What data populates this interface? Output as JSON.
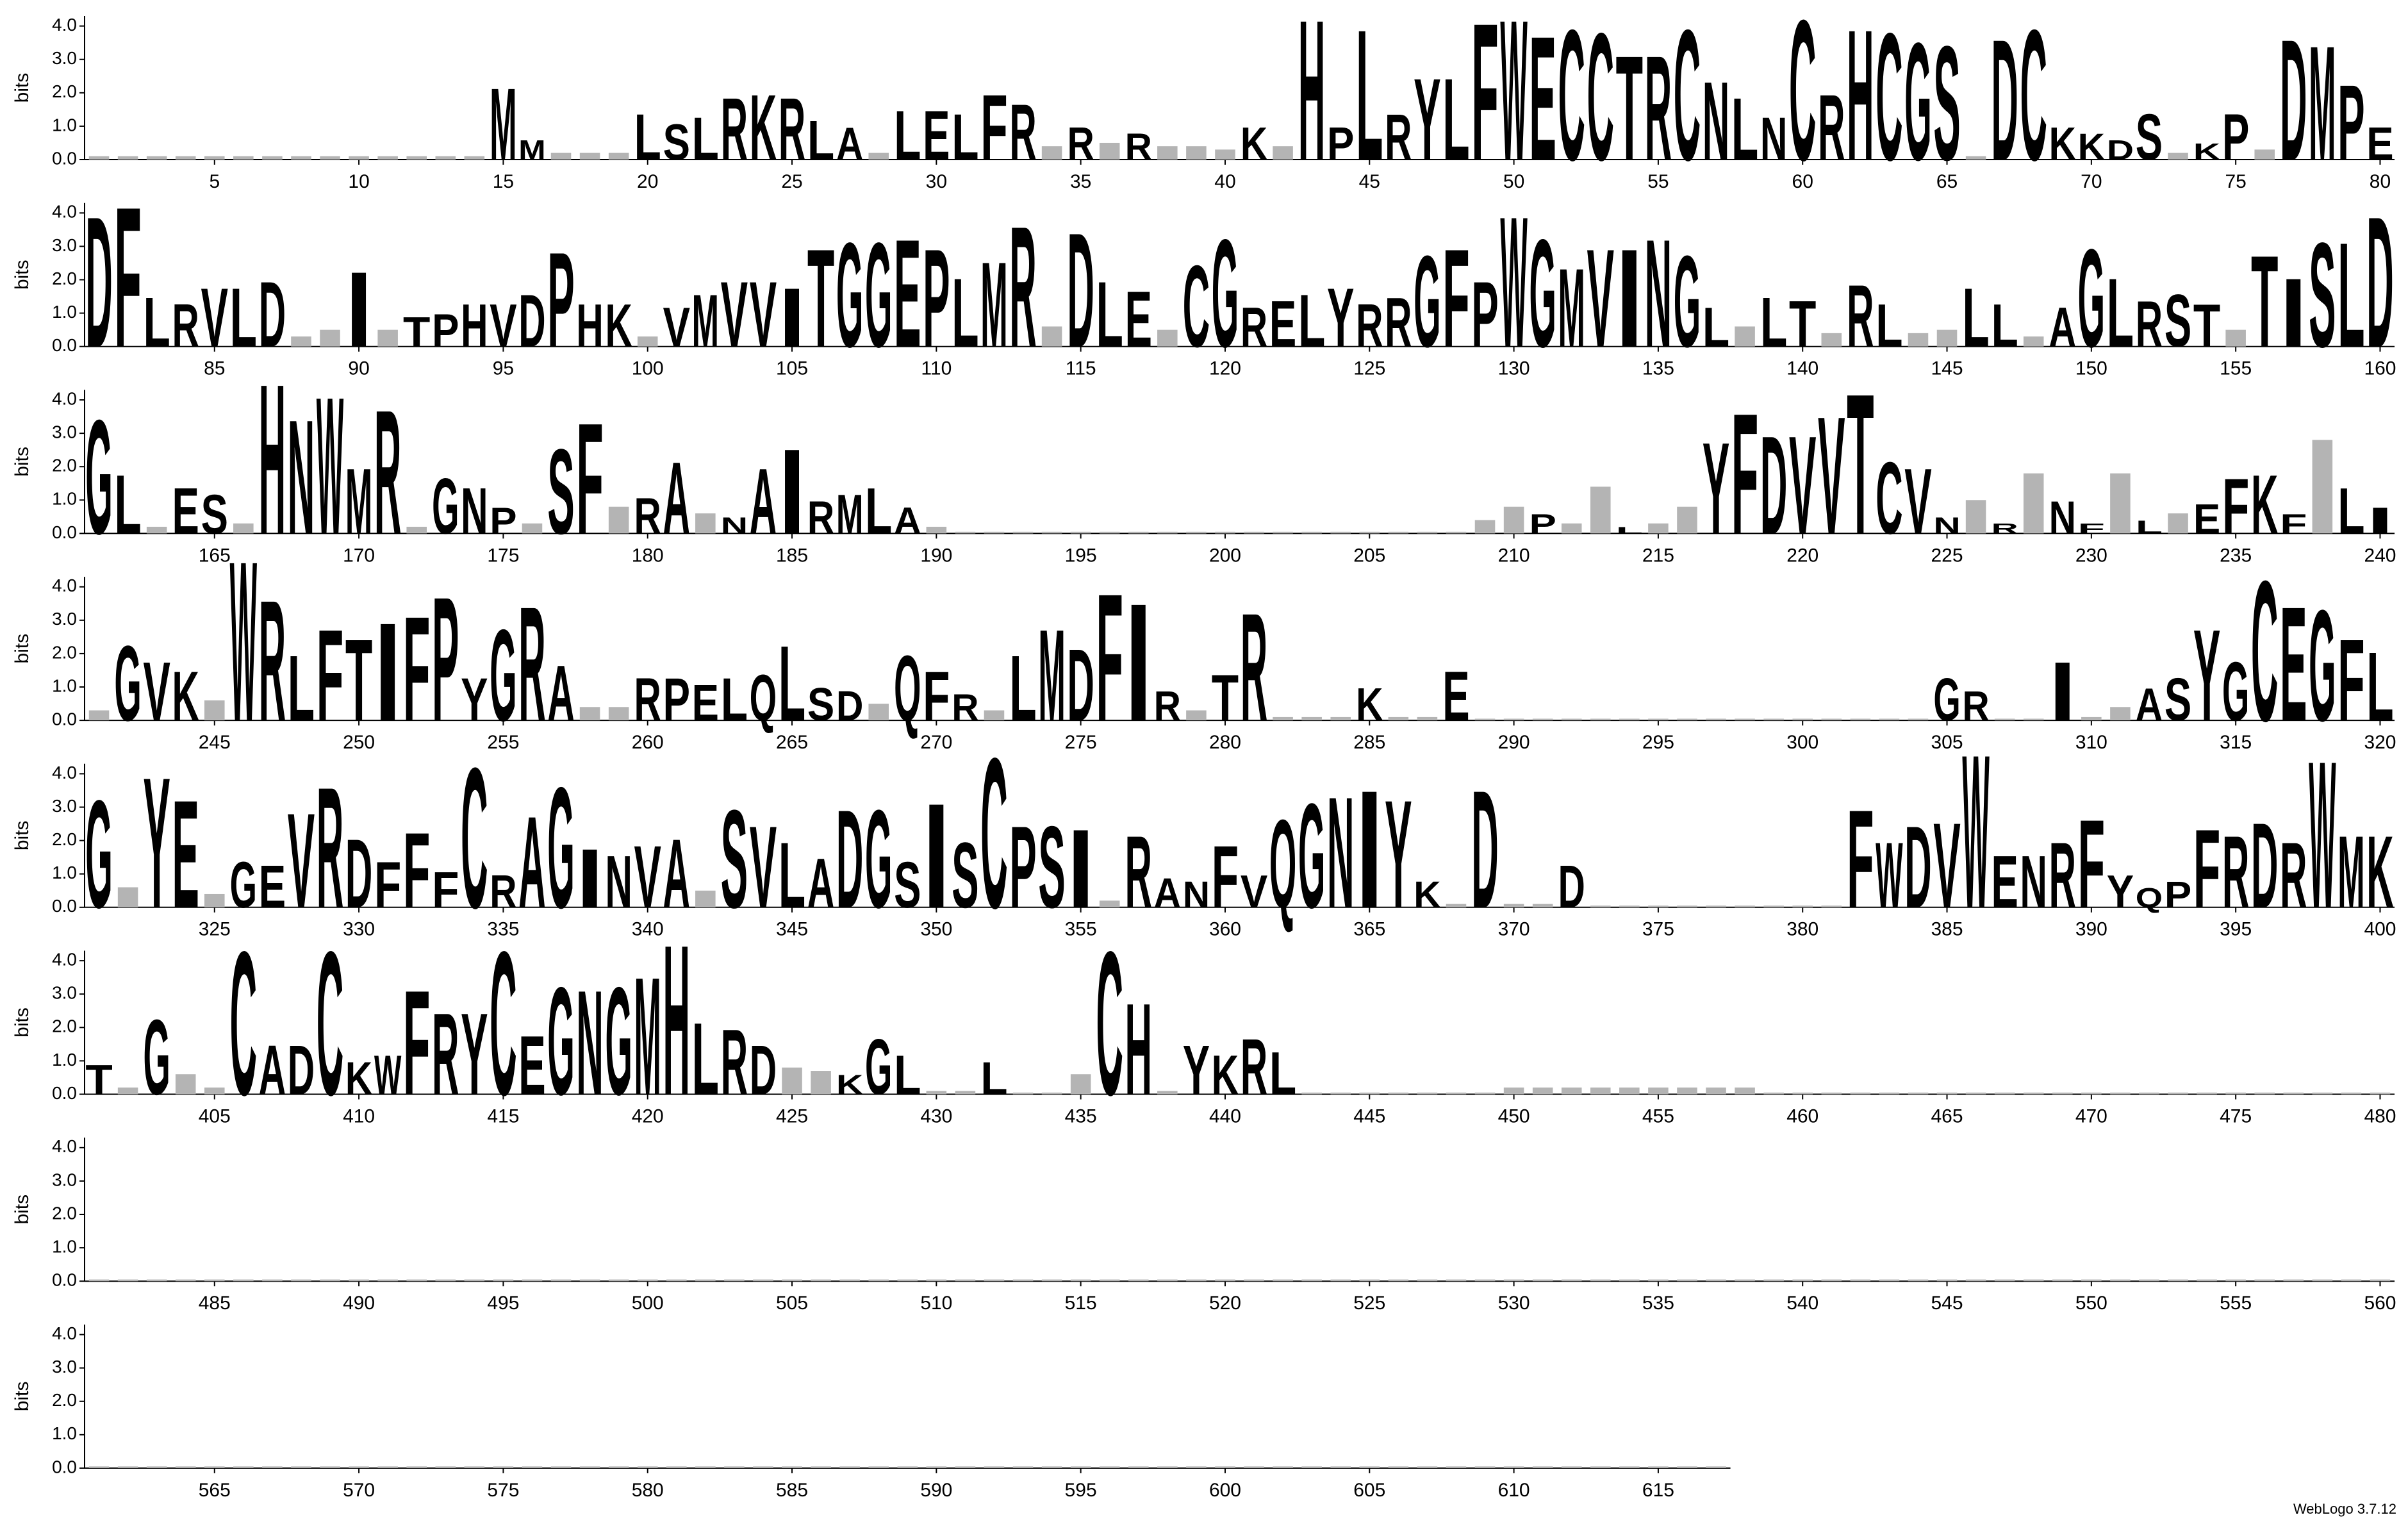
{
  "chart_data": {
    "type": "logo",
    "ylabel": "bits",
    "footer": "WebLogo 3.7.12",
    "ylim": [
      0,
      4.3
    ],
    "yticks": [
      {
        "value": 0,
        "label": "0.0"
      },
      {
        "value": 1,
        "label": "1.0"
      },
      {
        "value": 2,
        "label": "2.0"
      },
      {
        "value": 3,
        "label": "3.0"
      },
      {
        "value": 4,
        "label": "4.0"
      }
    ],
    "color": "#000000",
    "colors": {
      "C": "#ff0000"
    },
    "filler_color": "#b4b4b4",
    "rows": [
      {
        "xlim": [
          0.5,
          80.5
        ],
        "xticks": [
          5,
          10,
          15,
          20,
          25,
          30,
          35,
          40,
          45,
          50,
          55,
          60,
          65,
          70,
          75,
          80
        ],
        "letters": "..............MM...LSLRKRLA.LELFR.R.R...K.HPLRYLFWECCTRCNLNCRHCGS.DCKKDS.KP.DMPE",
        "heights": [
          0.1,
          0.1,
          0.1,
          0.1,
          0.1,
          0.1,
          0.1,
          0.1,
          0.1,
          0.1,
          0.1,
          0.1,
          0.1,
          0.1,
          2.2,
          0.6,
          0.2,
          0.2,
          0.2,
          1.4,
          1.1,
          1.3,
          1.9,
          2.0,
          1.9,
          1.2,
          1.0,
          0.2,
          1.5,
          1.5,
          1.4,
          2.0,
          1.7,
          0.4,
          1.0,
          0.5,
          0.8,
          0.4,
          0.4,
          0.3,
          1.0,
          0.4,
          4.3,
          1.0,
          4.0,
          1.4,
          2.5,
          2.5,
          4.2,
          4.3,
          3.8,
          4.0,
          3.9,
          3.2,
          3.2,
          4.0,
          2.4,
          1.9,
          1.3,
          4.3,
          2.0,
          4.0,
          3.9,
          3.6,
          3.5,
          0.1,
          3.7,
          4.0,
          1.0,
          0.8,
          0.6,
          1.4,
          0.2,
          0.5,
          1.4,
          0.3,
          3.7,
          3.5,
          2.3,
          1.0
        ]
      },
      {
        "xlim": [
          80.5,
          160.5
        ],
        "xticks": [
          85,
          90,
          95,
          100,
          105,
          110,
          115,
          120,
          125,
          130,
          135,
          140,
          145,
          150,
          155,
          160
        ],
        "letters": "DFLRVLD..I.TPHVDPHK.VMVVITGGEPLMR.DLE.CGRELYRRGFPWGMVINGL.LT.RL..LL.AGLRST.TISLD",
        "heights": [
          4.0,
          4.3,
          1.5,
          1.3,
          1.8,
          1.8,
          2.0,
          0.3,
          0.5,
          2.3,
          0.5,
          0.9,
          1.0,
          1.3,
          1.3,
          1.6,
          2.9,
          1.3,
          1.3,
          0.3,
          1.2,
          1.6,
          2.0,
          2.0,
          1.8,
          3.0,
          3.2,
          3.2,
          3.3,
          3.0,
          2.1,
          2.6,
          3.7,
          0.6,
          3.5,
          2.0,
          1.7,
          0.5,
          2.5,
          3.3,
          1.2,
          1.4,
          1.6,
          1.8,
          1.3,
          1.5,
          2.8,
          3.0,
          2.0,
          4.0,
          3.3,
          2.4,
          3.0,
          3.0,
          3.3,
          2.8,
          1.2,
          0.6,
          1.5,
          1.4,
          0.4,
          1.9,
          1.3,
          0.4,
          0.5,
          1.8,
          1.3,
          0.3,
          1.2,
          3.0,
          2.1,
          1.4,
          1.6,
          1.3,
          0.5,
          2.8,
          2.1,
          3.2,
          3.2,
          4.0
        ]
      },
      {
        "xlim": [
          160.5,
          240.5
        ],
        "xticks": [
          165,
          170,
          175,
          180,
          185,
          190,
          195,
          200,
          205,
          210,
          215,
          220,
          225,
          230,
          235,
          240
        ],
        "letters": "GL.ES.HNWMR.GNP.SF.RA.NAIRMLA.....................P..L..YFDVVTCVN.R.NF.L.EFKF.LIS",
        "heights": [
          3.5,
          1.8,
          0.2,
          1.4,
          1.2,
          0.3,
          4.6,
          3.5,
          4.2,
          2.0,
          3.8,
          0.2,
          1.7,
          1.4,
          0.8,
          0.3,
          2.6,
          3.4,
          0.8,
          1.1,
          2.2,
          0.6,
          0.5,
          2.0,
          2.6,
          1.0,
          1.2,
          1.4,
          0.8,
          0.2,
          0.05,
          0.05,
          0.05,
          0.05,
          0.05,
          0.05,
          0.05,
          0.05,
          0.05,
          0.05,
          0.05,
          0.05,
          0.05,
          0.05,
          0.05,
          0.05,
          0.05,
          0.05,
          0.4,
          0.8,
          0.6,
          0.3,
          1.4,
          0.2,
          0.3,
          0.8,
          2.8,
          3.7,
          3.0,
          3.0,
          3.6,
          4.3,
          2.2,
          2.0,
          0.5,
          1.0,
          0.3,
          1.8,
          1.0,
          0.3,
          1.8,
          0.4,
          0.6,
          0.9,
          1.7,
          1.8,
          0.6,
          2.8,
          1.4,
          0.8
        ]
      },
      {
        "xlim": [
          240.5,
          320.5
        ],
        "xticks": [
          245,
          250,
          255,
          260,
          265,
          270,
          275,
          280,
          285,
          290,
          295,
          300,
          305,
          310,
          315,
          320
        ],
        "letters": ".GVK.WRLFTIFPYGRA..RPELQLSD.QFR.LMDFIR.TR...K..E................GR..I..ASYGCEGFL",
        "heights": [
          0.3,
          2.3,
          1.8,
          1.5,
          0.6,
          4.9,
          3.7,
          2.0,
          2.8,
          2.5,
          3.0,
          3.2,
          3.8,
          1.3,
          2.8,
          3.5,
          1.7,
          0.4,
          0.4,
          1.3,
          1.3,
          1.1,
          1.3,
          1.4,
          2.3,
          1.0,
          0.9,
          0.5,
          2.0,
          1.5,
          0.8,
          0.3,
          2.0,
          2.8,
          2.2,
          3.9,
          3.6,
          0.9,
          0.3,
          1.4,
          3.3,
          0.1,
          0.1,
          0.1,
          1.0,
          0.1,
          0.1,
          1.5,
          0.05,
          0.05,
          0.05,
          0.05,
          0.05,
          0.05,
          0.05,
          0.05,
          0.05,
          0.05,
          0.05,
          0.05,
          0.05,
          0.05,
          0.05,
          0.05,
          1.3,
          0.9,
          0.05,
          0.05,
          1.8,
          0.1,
          0.4,
          1.0,
          1.3,
          2.8,
          1.8,
          4.3,
          3.5,
          3.4,
          2.5,
          2.1
        ]
      },
      {
        "xlim": [
          320.5,
          400.5
        ],
        "xticks": [
          325,
          330,
          335,
          340,
          345,
          350,
          355,
          360,
          365,
          370,
          375,
          380,
          385,
          390,
          395,
          400
        ],
        "letters": "G.YE.GEVRDFFFCRAGINVA.SVLADGSISCPSI.RANFVQGNIYK.D..D.........FWDVWENRFYQPFRDRWMK",
        "heights": [
          3.3,
          0.6,
          4.0,
          3.3,
          0.4,
          1.4,
          1.3,
          2.9,
          3.7,
          2.1,
          1.4,
          2.3,
          1.1,
          4.3,
          1.0,
          2.8,
          3.7,
          1.8,
          1.6,
          1.9,
          2.1,
          0.5,
          3.0,
          2.5,
          2.0,
          1.5,
          3.0,
          3.0,
          1.4,
          3.2,
          2.0,
          4.6,
          2.5,
          2.5,
          2.4,
          0.2,
          2.2,
          0.9,
          0.8,
          1.9,
          1.0,
          2.7,
          3.2,
          3.4,
          3.6,
          3.3,
          0.8,
          0.1,
          3.6,
          0.1,
          0.1,
          1.3,
          0.05,
          0.05,
          0.05,
          0.05,
          0.05,
          0.05,
          0.05,
          0.05,
          0.05,
          3.0,
          2.0,
          2.5,
          2.6,
          4.7,
          1.6,
          1.6,
          2.0,
          2.7,
          1.0,
          0.6,
          0.8,
          2.4,
          2.2,
          2.6,
          2.0,
          4.5,
          2.2,
          2.2
        ]
      },
      {
        "xlim": [
          400.5,
          480.5
        ],
        "xticks": [
          405,
          410,
          415,
          420,
          425,
          430,
          435,
          440,
          445,
          450,
          455,
          460,
          465,
          470,
          475,
          480
        ],
        "letters": "T.G..CADCKWFRYCEGNGMHLRD..KGL..L...CH.YKRL......................................",
        "heights": [
          0.9,
          0.2,
          2.3,
          0.6,
          0.2,
          4.4,
          1.5,
          1.5,
          4.4,
          1.0,
          1.2,
          3.2,
          2.5,
          2.5,
          4.4,
          1.8,
          3.3,
          3.2,
          3.3,
          3.6,
          4.6,
          2.2,
          2.0,
          1.5,
          0.8,
          0.7,
          0.6,
          1.7,
          1.2,
          0.1,
          0.1,
          1.0,
          0.05,
          0.05,
          0.6,
          4.4,
          2.8,
          0.1,
          1.5,
          1.2,
          1.7,
          1.3,
          0.05,
          0.05,
          0.05,
          0.05,
          0.05,
          0.05,
          0.05,
          0.2,
          0.2,
          0.2,
          0.2,
          0.2,
          0.2,
          0.2,
          0.2,
          0.2,
          0.05,
          0.05,
          0.05,
          0.05,
          0.05,
          0.05,
          0.05,
          0.05,
          0.05,
          0.05,
          0.05,
          0.05,
          0.05,
          0.05,
          0.05,
          0.05,
          0.05,
          0.05,
          0.05,
          0.05,
          0.05,
          0.05
        ]
      },
      {
        "xlim": [
          480.5,
          560.5
        ],
        "xticks": [
          485,
          490,
          495,
          500,
          505,
          510,
          515,
          520,
          525,
          530,
          535,
          540,
          545,
          550,
          555,
          560
        ],
        "letters": "................................................................................",
        "heights": [
          0.05,
          0.05,
          0.05,
          0.05,
          0.05,
          0.05,
          0.05,
          0.05,
          0.05,
          0.05,
          0.05,
          0.05,
          0.05,
          0.05,
          0.05,
          0.05,
          0.05,
          0.05,
          0.05,
          0.05,
          0.05,
          0.05,
          0.05,
          0.05,
          0.05,
          0.05,
          0.05,
          0.05,
          0.05,
          0.05,
          0.05,
          0.05,
          0.05,
          0.05,
          0.05,
          0.05,
          0.05,
          0.05,
          0.05,
          0.05,
          0.05,
          0.05,
          0.05,
          0.05,
          0.05,
          0.05,
          0.05,
          0.05,
          0.05,
          0.05,
          0.05,
          0.05,
          0.05,
          0.05,
          0.05,
          0.05,
          0.05,
          0.05,
          0.05,
          0.05,
          0.05,
          0.05,
          0.05,
          0.05,
          0.05,
          0.05,
          0.05,
          0.05,
          0.05,
          0.05,
          0.05,
          0.05,
          0.05,
          0.05,
          0.05,
          0.05,
          0.05,
          0.05,
          0.05,
          0.05
        ]
      },
      {
        "xlim": [
          560.5,
          617.5
        ],
        "xticks": [
          565,
          570,
          575,
          580,
          585,
          590,
          595,
          600,
          605,
          610,
          615
        ],
        "letters": ".........................................................",
        "heights": [
          0.05,
          0.05,
          0.05,
          0.05,
          0.05,
          0.05,
          0.05,
          0.05,
          0.05,
          0.05,
          0.05,
          0.05,
          0.05,
          0.05,
          0.05,
          0.05,
          0.05,
          0.05,
          0.05,
          0.05,
          0.05,
          0.05,
          0.05,
          0.05,
          0.05,
          0.05,
          0.05,
          0.05,
          0.05,
          0.05,
          0.05,
          0.05,
          0.05,
          0.05,
          0.05,
          0.05,
          0.05,
          0.05,
          0.05,
          0.05,
          0.05,
          0.05,
          0.05,
          0.05,
          0.05,
          0.05,
          0.05,
          0.05,
          0.05,
          0.05,
          0.05,
          0.05,
          0.05,
          0.05,
          0.05,
          0.05,
          0.05
        ]
      }
    ]
  }
}
